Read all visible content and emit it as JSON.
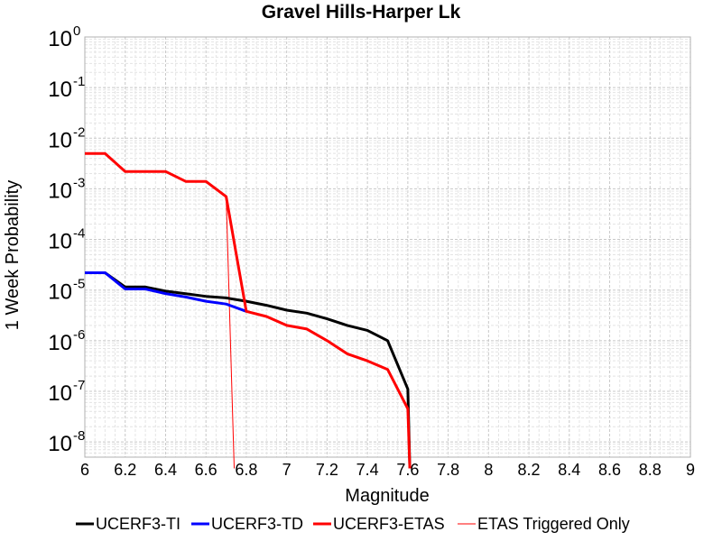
{
  "chart_data": {
    "type": "line",
    "title": "Gravel Hills-Harper Lk",
    "xlabel": "Magnitude",
    "ylabel": "1 Week Probability",
    "xlim": [
      6,
      9
    ],
    "ylim": [
      5e-09,
      1
    ],
    "yscale": "log",
    "grid": true,
    "legend_position": "bottom",
    "x_ticks": [
      "6",
      "6.2",
      "6.4",
      "6.6",
      "6.8",
      "7",
      "7.2",
      "7.4",
      "7.6",
      "7.8",
      "8",
      "8.2",
      "8.4",
      "8.6",
      "8.8",
      "9"
    ],
    "y_ticks": [
      {
        "base": "10",
        "exp": "0",
        "value": 1
      },
      {
        "base": "10",
        "exp": "-1",
        "value": 0.1
      },
      {
        "base": "10",
        "exp": "-2",
        "value": 0.01
      },
      {
        "base": "10",
        "exp": "-3",
        "value": 0.001
      },
      {
        "base": "10",
        "exp": "-4",
        "value": 0.0001
      },
      {
        "base": "10",
        "exp": "-5",
        "value": 1e-05
      },
      {
        "base": "10",
        "exp": "-6",
        "value": 1e-06
      },
      {
        "base": "10",
        "exp": "-7",
        "value": 1e-07
      },
      {
        "base": "10",
        "exp": "-8",
        "value": 1e-08
      }
    ],
    "series": [
      {
        "name": "UCERF3-TI",
        "color": "#000000",
        "x": [
          6.0,
          6.1,
          6.2,
          6.3,
          6.4,
          6.5,
          6.6,
          6.7,
          6.8,
          6.9,
          7.0,
          7.1,
          7.2,
          7.3,
          7.4,
          7.5,
          7.6,
          7.61
        ],
        "y": [
          2.2e-05,
          2.2e-05,
          1.15e-05,
          1.15e-05,
          9.5e-06,
          8.5e-06,
          7.5e-06,
          7e-06,
          6e-06,
          5e-06,
          4e-06,
          3.5e-06,
          2.7e-06,
          2e-06,
          1.6e-06,
          1e-06,
          1.1e-07,
          3e-09
        ]
      },
      {
        "name": "UCERF3-TD",
        "color": "#0000ff",
        "x": [
          6.0,
          6.1,
          6.2,
          6.3,
          6.4,
          6.5,
          6.6,
          6.7,
          6.8
        ],
        "y": [
          2.2e-05,
          2.2e-05,
          1.05e-05,
          1.05e-05,
          8.5e-06,
          7.3e-06,
          6e-06,
          5.3e-06,
          3.8e-06
        ]
      },
      {
        "name": "UCERF3-ETAS",
        "color": "#ff0000",
        "x": [
          6.0,
          6.1,
          6.2,
          6.3,
          6.4,
          6.5,
          6.6,
          6.7,
          6.8,
          6.9,
          7.0,
          7.1,
          7.2,
          7.3,
          7.4,
          7.5,
          7.6,
          7.61
        ],
        "y": [
          0.005,
          0.005,
          0.0022,
          0.0022,
          0.0022,
          0.0014,
          0.0014,
          0.0007,
          3.8e-06,
          3e-06,
          2e-06,
          1.7e-06,
          1e-06,
          5.5e-07,
          4e-07,
          2.7e-07,
          4.5e-08,
          3e-09
        ]
      },
      {
        "name": "ETAS Triggered Only",
        "color": "#ff0000",
        "x": [
          6.0,
          6.1,
          6.2,
          6.3,
          6.4,
          6.5,
          6.6,
          6.7,
          6.74
        ],
        "y": [
          0.005,
          0.005,
          0.0022,
          0.0022,
          0.0022,
          0.0014,
          0.0014,
          0.0007,
          3e-09
        ]
      }
    ]
  }
}
